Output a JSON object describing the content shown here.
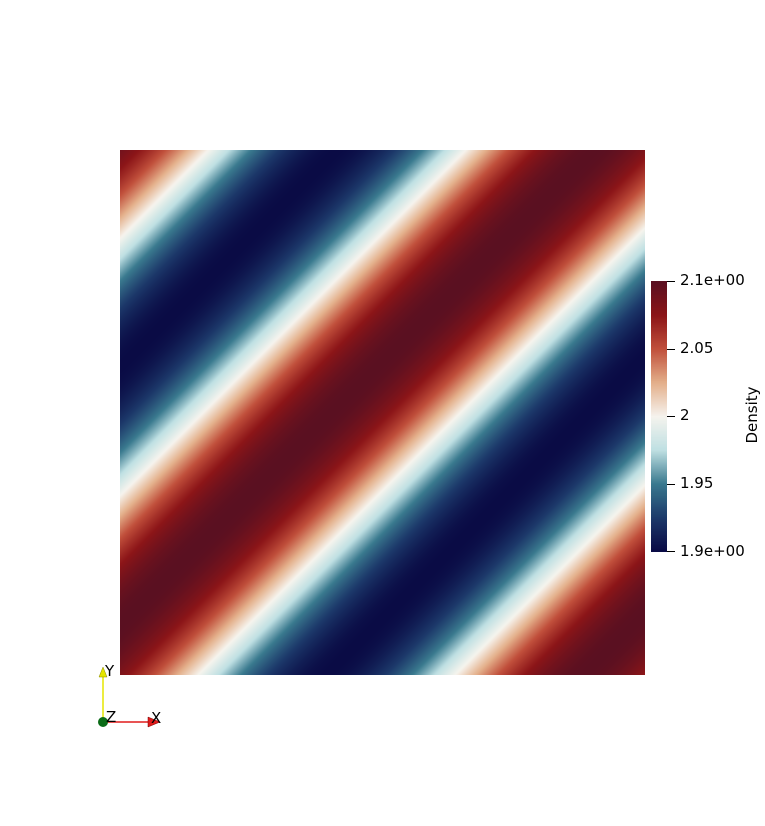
{
  "scalar_field": {
    "name": "Density",
    "range": [
      1.9,
      2.1
    ]
  },
  "colorbar": {
    "title": "Density",
    "ticks": [
      {
        "label": "2.1e+00",
        "value": 2.1
      },
      {
        "label": "2.05",
        "value": 2.05
      },
      {
        "label": "2",
        "value": 2.0
      },
      {
        "label": "1.95",
        "value": 1.95
      },
      {
        "label": "1.9e+00",
        "value": 1.9
      }
    ],
    "colormap": [
      "#0a0b45",
      "#1d3a6b",
      "#3a7a8f",
      "#bfe0e3",
      "#f6f4ee",
      "#e4b08b",
      "#c1503c",
      "#8c1518",
      "#5a1021"
    ]
  },
  "orientation_axes": {
    "x_label": "X",
    "y_label": "Y",
    "z_label": "Z",
    "x_color": "#e01b1b",
    "y_color": "#e5e500",
    "z_color": "#0b6b17"
  }
}
